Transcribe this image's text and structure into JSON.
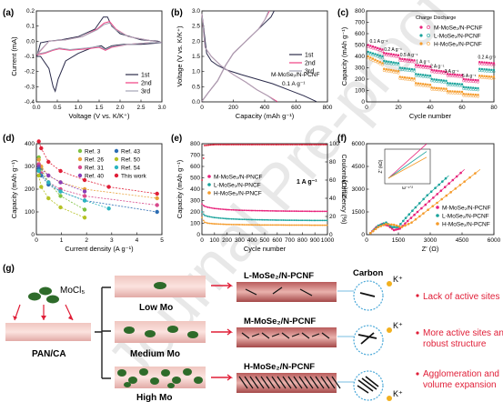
{
  "watermark": "Journal Pre-proof",
  "panel_letters": [
    "(a)",
    "(b)",
    "(c)",
    "(d)",
    "(e)",
    "(f)",
    "(g)"
  ],
  "colors": {
    "first": "#2a2a4a",
    "second": "#ef3f82",
    "third": "#a5a5b5",
    "m": "#e8217a",
    "l": "#1aa39b",
    "h": "#f59b2a",
    "red": "#e01e37",
    "green_fiber": "#2e6b2a",
    "pink_fiber": "#e8b3b0"
  },
  "chart_data": [
    {
      "panel": "(a)",
      "type": "line",
      "xlabel": "Voltage (V vs. K/K⁺)",
      "ylabel": "Current (mA)",
      "xlim": [
        0,
        3.0
      ],
      "ylim": [
        -0.4,
        0.2
      ],
      "xticks": [
        "0.0",
        "0.5",
        "1.0",
        "1.5",
        "2.0",
        "2.5",
        "3.0"
      ],
      "yticks": [
        "-0.4",
        "-0.3",
        "-0.2",
        "-0.1",
        "0.0",
        "0.1",
        "0.2"
      ],
      "legend": [
        "1st",
        "2nd",
        "3rd"
      ],
      "series": [
        {
          "name": "1st",
          "x": [
            0.01,
            0.1,
            0.3,
            0.4,
            0.45,
            0.52,
            0.7,
            1.0,
            1.35,
            1.55,
            1.65,
            1.8,
            2.1,
            2.5,
            3.0,
            2.9,
            2.5,
            2.0,
            1.8,
            1.7,
            1.6,
            1.4,
            1.0,
            0.6,
            0.3,
            0.1,
            0.01
          ],
          "y": [
            -0.1,
            -0.1,
            -0.18,
            -0.3,
            -0.33,
            -0.25,
            -0.13,
            -0.08,
            -0.04,
            -0.03,
            -0.05,
            -0.03,
            -0.02,
            -0.02,
            -0.01,
            0.0,
            0.01,
            0.05,
            0.1,
            0.16,
            0.16,
            0.08,
            0.03,
            0.01,
            0.0,
            -0.01,
            -0.1
          ]
        },
        {
          "name": "2nd",
          "x": [
            0.01,
            0.2,
            0.4,
            0.55,
            0.8,
            1.2,
            1.5,
            1.65,
            1.8,
            2.2,
            2.7,
            3.0,
            2.8,
            2.2,
            1.9,
            1.75,
            1.62,
            1.45,
            1.1,
            0.7,
            0.3,
            0.01
          ],
          "y": [
            -0.09,
            -0.08,
            -0.06,
            -0.05,
            -0.06,
            -0.05,
            -0.04,
            -0.06,
            -0.04,
            -0.02,
            -0.01,
            -0.01,
            0.0,
            0.03,
            0.08,
            0.13,
            0.12,
            0.08,
            0.03,
            0.01,
            0.0,
            -0.09
          ]
        },
        {
          "name": "3rd",
          "x": [
            0.01,
            0.2,
            0.4,
            0.55,
            0.8,
            1.2,
            1.5,
            1.65,
            1.8,
            2.2,
            2.7,
            3.0,
            2.8,
            2.2,
            1.9,
            1.75,
            1.62,
            1.45,
            1.1,
            0.7,
            0.3,
            0.01
          ],
          "y": [
            -0.085,
            -0.075,
            -0.055,
            -0.045,
            -0.055,
            -0.045,
            -0.035,
            -0.055,
            -0.035,
            -0.02,
            -0.01,
            -0.01,
            0.0,
            0.03,
            0.075,
            0.12,
            0.11,
            0.075,
            0.03,
            0.01,
            0.0,
            -0.085
          ]
        }
      ]
    },
    {
      "panel": "(b)",
      "type": "line",
      "xlabel": "Capacity (mAh g⁻¹)",
      "ylabel": "Voltage (V vs. K/K⁺)",
      "xlim": [
        0,
        800
      ],
      "ylim": [
        0,
        3.0
      ],
      "xticks": [
        "0",
        "200",
        "400",
        "600",
        "800"
      ],
      "yticks": [
        "0.0",
        "0.5",
        "1.0",
        "1.5",
        "2.0",
        "2.5",
        "3.0"
      ],
      "legend": [
        "1st",
        "2nd",
        "3rd"
      ],
      "annotation": [
        "M-MoSe₂/N-PCNF",
        "0.1 A g⁻¹"
      ],
      "series": [
        {
          "name": "1st discharge",
          "x": [
            0,
            30,
            60,
            100,
            160,
            250,
            350,
            450,
            550,
            650,
            730
          ],
          "y": [
            2.9,
            1.6,
            1.35,
            1.2,
            1.05,
            0.9,
            0.75,
            0.6,
            0.4,
            0.2,
            0.01
          ]
        },
        {
          "name": "1st charge",
          "x": [
            0,
            40,
            100,
            150,
            200,
            240,
            280,
            320,
            360,
            400,
            440,
            460
          ],
          "y": [
            0.02,
            0.3,
            0.7,
            1.2,
            1.6,
            1.8,
            2.0,
            2.2,
            2.4,
            2.6,
            2.8,
            3.0
          ]
        },
        {
          "name": "2nd discharge",
          "x": [
            0,
            20,
            60,
            120,
            200,
            280,
            350,
            420,
            480
          ],
          "y": [
            2.9,
            1.8,
            1.5,
            1.2,
            0.9,
            0.65,
            0.4,
            0.2,
            0.01
          ]
        },
        {
          "name": "2nd charge",
          "x": [
            0,
            40,
            100,
            150,
            200,
            240,
            280,
            320,
            360,
            400,
            430
          ],
          "y": [
            0.02,
            0.3,
            0.7,
            1.2,
            1.6,
            1.8,
            2.0,
            2.2,
            2.4,
            2.7,
            3.0
          ]
        },
        {
          "name": "3rd discharge",
          "x": [
            0,
            20,
            60,
            120,
            200,
            280,
            350,
            420,
            470
          ],
          "y": [
            2.9,
            1.8,
            1.5,
            1.2,
            0.9,
            0.65,
            0.4,
            0.2,
            0.01
          ]
        },
        {
          "name": "3rd charge",
          "x": [
            0,
            40,
            100,
            150,
            200,
            240,
            280,
            320,
            360,
            400,
            425
          ],
          "y": [
            0.02,
            0.3,
            0.7,
            1.2,
            1.6,
            1.8,
            2.0,
            2.2,
            2.4,
            2.7,
            3.0
          ]
        }
      ]
    },
    {
      "panel": "(c)",
      "type": "scatter",
      "xlabel": "Cycle number",
      "ylabel": "Capacity (mAh g⁻¹)",
      "xlim": [
        0,
        80
      ],
      "ylim": [
        0,
        800
      ],
      "xticks": [
        "0",
        "20",
        "40",
        "60",
        "80"
      ],
      "yticks": [
        "0",
        "100",
        "200",
        "300",
        "400",
        "500",
        "600",
        "700",
        "800"
      ],
      "legend_header": "Charge Discharge",
      "legend": [
        "M-MoSe₂/N-PCNF",
        "L-MoSe₂/N-PCNF",
        "H-MoSe₂/N-PCNF"
      ],
      "rate_labels": [
        "0.1 A g⁻¹",
        "0.2 A g⁻¹",
        "0.5 A g⁻¹",
        "1 A g⁻¹",
        "2 A g⁻¹",
        "3 A g⁻¹",
        "5 A g⁻¹",
        "0.2 A g⁻¹"
      ],
      "series": [
        {
          "name": "M-MoSe₂/N-PCNF",
          "segments": [
            [
              1,
              10,
              500,
              460
            ],
            [
              11,
              20,
              430,
              410
            ],
            [
              21,
              30,
              380,
              365
            ],
            [
              31,
              40,
              325,
              310
            ],
            [
              41,
              50,
              280,
              265
            ],
            [
              51,
              60,
              245,
              235
            ],
            [
              61,
              70,
              200,
              190
            ],
            [
              71,
              80,
              350,
              340
            ]
          ]
        },
        {
          "name": "L-MoSe₂/N-PCNF",
          "segments": [
            [
              1,
              10,
              440,
              400
            ],
            [
              11,
              20,
              360,
              340
            ],
            [
              21,
              30,
              300,
              285
            ],
            [
              31,
              40,
              245,
              230
            ],
            [
              41,
              50,
              200,
              185
            ],
            [
              51,
              60,
              165,
              155
            ],
            [
              61,
              70,
              130,
              120
            ],
            [
              71,
              80,
              290,
              280
            ]
          ]
        },
        {
          "name": "H-MoSe₂/N-PCNF",
          "segments": [
            [
              1,
              10,
              400,
              340
            ],
            [
              11,
              20,
              290,
              270
            ],
            [
              21,
              30,
              220,
              205
            ],
            [
              31,
              40,
              165,
              150
            ],
            [
              41,
              50,
              125,
              115
            ],
            [
              51,
              60,
              95,
              88
            ],
            [
              61,
              70,
              70,
              62
            ],
            [
              71,
              80,
              230,
              220
            ]
          ]
        }
      ]
    },
    {
      "panel": "(d)",
      "type": "line",
      "xlabel": "Current density (A g⁻¹)",
      "ylabel": "Capacity (mAh g⁻¹)",
      "xlim": [
        0,
        5.2
      ],
      "ylim": [
        0,
        400
      ],
      "xticks": [
        "0",
        "1",
        "2",
        "3",
        "4",
        "5"
      ],
      "yticks": [
        "0",
        "100",
        "200",
        "300",
        "400"
      ],
      "series": [
        {
          "name": "Ref. 3",
          "color": "#7fc241",
          "x": [
            0.1,
            0.2,
            0.5,
            1,
            2
          ],
          "y": [
            340,
            290,
            230,
            170,
            110
          ]
        },
        {
          "name": "Ref. 26",
          "color": "#e8a23a",
          "x": [
            0.1,
            0.2,
            0.5,
            1,
            2,
            5
          ],
          "y": [
            330,
            300,
            260,
            230,
            200,
            160
          ]
        },
        {
          "name": "Ref. 31",
          "color": "#d84a8c",
          "x": [
            0.1,
            0.2,
            0.5,
            1,
            2,
            5
          ],
          "y": [
            310,
            270,
            230,
            200,
            170,
            130
          ]
        },
        {
          "name": "Ref. 40",
          "color": "#8a3db8",
          "x": [
            0.1,
            0.5,
            1,
            2
          ],
          "y": [
            300,
            260,
            230,
            190
          ]
        },
        {
          "name": "Ref. 43",
          "color": "#2c6db3",
          "x": [
            0.1,
            0.2,
            0.5,
            1,
            2,
            5
          ],
          "y": [
            290,
            260,
            220,
            190,
            150,
            100
          ]
        },
        {
          "name": "Ref. 50",
          "color": "#b5c224",
          "x": [
            0.1,
            0.2,
            0.5,
            1,
            2
          ],
          "y": [
            260,
            210,
            160,
            120,
            75
          ]
        },
        {
          "name": "Ref. 54",
          "color": "#2bb5c0",
          "x": [
            0.1,
            0.5,
            1,
            2,
            3
          ],
          "y": [
            280,
            230,
            190,
            150,
            115
          ]
        },
        {
          "name": "This work",
          "color": "#e01e37",
          "x": [
            0.1,
            0.2,
            0.5,
            1,
            2,
            3,
            5
          ],
          "y": [
            410,
            380,
            320,
            280,
            240,
            210,
            180
          ]
        }
      ]
    },
    {
      "panel": "(e)",
      "type": "scatter",
      "xlabel": "Cycle number",
      "ylabel": "Capacity (mAh g⁻¹)",
      "y2label": "Coulombic efficiency (%)",
      "xlim": [
        0,
        1000
      ],
      "ylim": [
        0,
        800
      ],
      "y2lim": [
        0,
        100
      ],
      "xticks": [
        "0",
        "100",
        "200",
        "300",
        "400",
        "500",
        "600",
        "700",
        "800",
        "900",
        "1000"
      ],
      "yticks": [
        "0",
        "100",
        "200",
        "300",
        "400",
        "500",
        "600",
        "700",
        "800"
      ],
      "y2ticks": [
        "0",
        "20",
        "40",
        "60",
        "80",
        "100"
      ],
      "rate_label": "1 A g⁻¹",
      "legend": [
        "M-MoSe₂/N-PNCF",
        "L-MoSe₂/N-PNCF",
        "H-MoSe₂/N-PNCF"
      ],
      "series": [
        {
          "name": "M-MoSe₂/N-PNCF",
          "x": [
            1,
            20,
            50,
            100,
            200,
            300,
            400,
            500,
            600,
            700,
            800,
            900,
            1000
          ],
          "y": [
            270,
            250,
            240,
            230,
            220,
            215,
            212,
            210,
            208,
            207,
            206,
            205,
            205
          ]
        },
        {
          "name": "L-MoSe₂/N-PNCF",
          "x": [
            1,
            20,
            50,
            100,
            200,
            300,
            400,
            500,
            600,
            700,
            800,
            900,
            1000
          ],
          "y": [
            200,
            170,
            160,
            150,
            140,
            135,
            132,
            130,
            128,
            127,
            126,
            125,
            125
          ]
        },
        {
          "name": "H-MoSe₂/N-PNCF",
          "x": [
            1,
            20,
            50,
            100,
            200,
            300,
            400,
            500,
            600,
            700,
            800,
            900,
            1000
          ],
          "y": [
            150,
            110,
            100,
            95,
            90,
            88,
            86,
            85,
            85,
            84,
            84,
            83,
            83
          ]
        },
        {
          "name": "Coulombic efficiency",
          "x": [
            1,
            20,
            100,
            200,
            400,
            600,
            800,
            1000
          ],
          "y": [
            60,
            98,
            99,
            99,
            99,
            99,
            99,
            99
          ]
        }
      ]
    },
    {
      "panel": "(f)",
      "type": "scatter",
      "xlabel": "Z′ (Ω)",
      "ylabel": "Z″ (Ω)",
      "xlim": [
        0,
        6500
      ],
      "ylim": [
        0,
        6000
      ],
      "xticks": [
        "0",
        "1500",
        "3000",
        "4500",
        "6000"
      ],
      "yticks": [
        "0",
        "1500",
        "3000",
        "4500",
        "6000"
      ],
      "legend": [
        "M-MoSe₂/N-PCNF",
        "L-MoSe₂/N-PCNF",
        "H-MoSe₂/N-PCNF"
      ],
      "inset": {
        "xlabel": "ω⁻¹ᐟ²",
        "ylabel": "Z′ (kΩ)"
      },
      "series": [
        {
          "name": "M-MoSe₂/N-PCNF",
          "x": [
            200,
            500,
            800,
            1100,
            1400,
            1700,
            2100,
            2600,
            3200,
            3800,
            4400,
            5000
          ],
          "y": [
            100,
            500,
            700,
            600,
            300,
            400,
            900,
            1500,
            2200,
            2900,
            3600,
            4300
          ]
        },
        {
          "name": "L-MoSe₂/N-PCNF",
          "x": [
            200,
            600,
            1000,
            1300,
            1600,
            2000,
            2500,
            3100,
            3700,
            4200
          ],
          "y": [
            100,
            600,
            800,
            500,
            500,
            1100,
            1800,
            2600,
            3300,
            3900
          ]
        },
        {
          "name": "H-MoSe₂/N-PCNF",
          "x": [
            200,
            600,
            1000,
            1400,
            1800,
            2300,
            2900,
            3600,
            4300,
            5000,
            5800
          ],
          "y": [
            100,
            500,
            700,
            650,
            500,
            800,
            1400,
            2100,
            2800,
            3500,
            4300
          ]
        }
      ]
    }
  ],
  "schematic": {
    "precursor_label": "MoCl₅",
    "source_label": "PAN/CA",
    "rows": [
      {
        "label": "Low Mo",
        "product": "L-MoSe₂/N-PCNF",
        "note": "Lack of active sites"
      },
      {
        "label": "Medium Mo",
        "product": "M-MoSe₂/N-PCNF",
        "note": "More active sites and robust structure"
      },
      {
        "label": "High Mo",
        "product": "H-MoSe₂/N-PCNF",
        "note": "Agglomeration and volume expansion"
      }
    ],
    "carbon_label": "Carbon",
    "ion_label": "K⁺"
  }
}
